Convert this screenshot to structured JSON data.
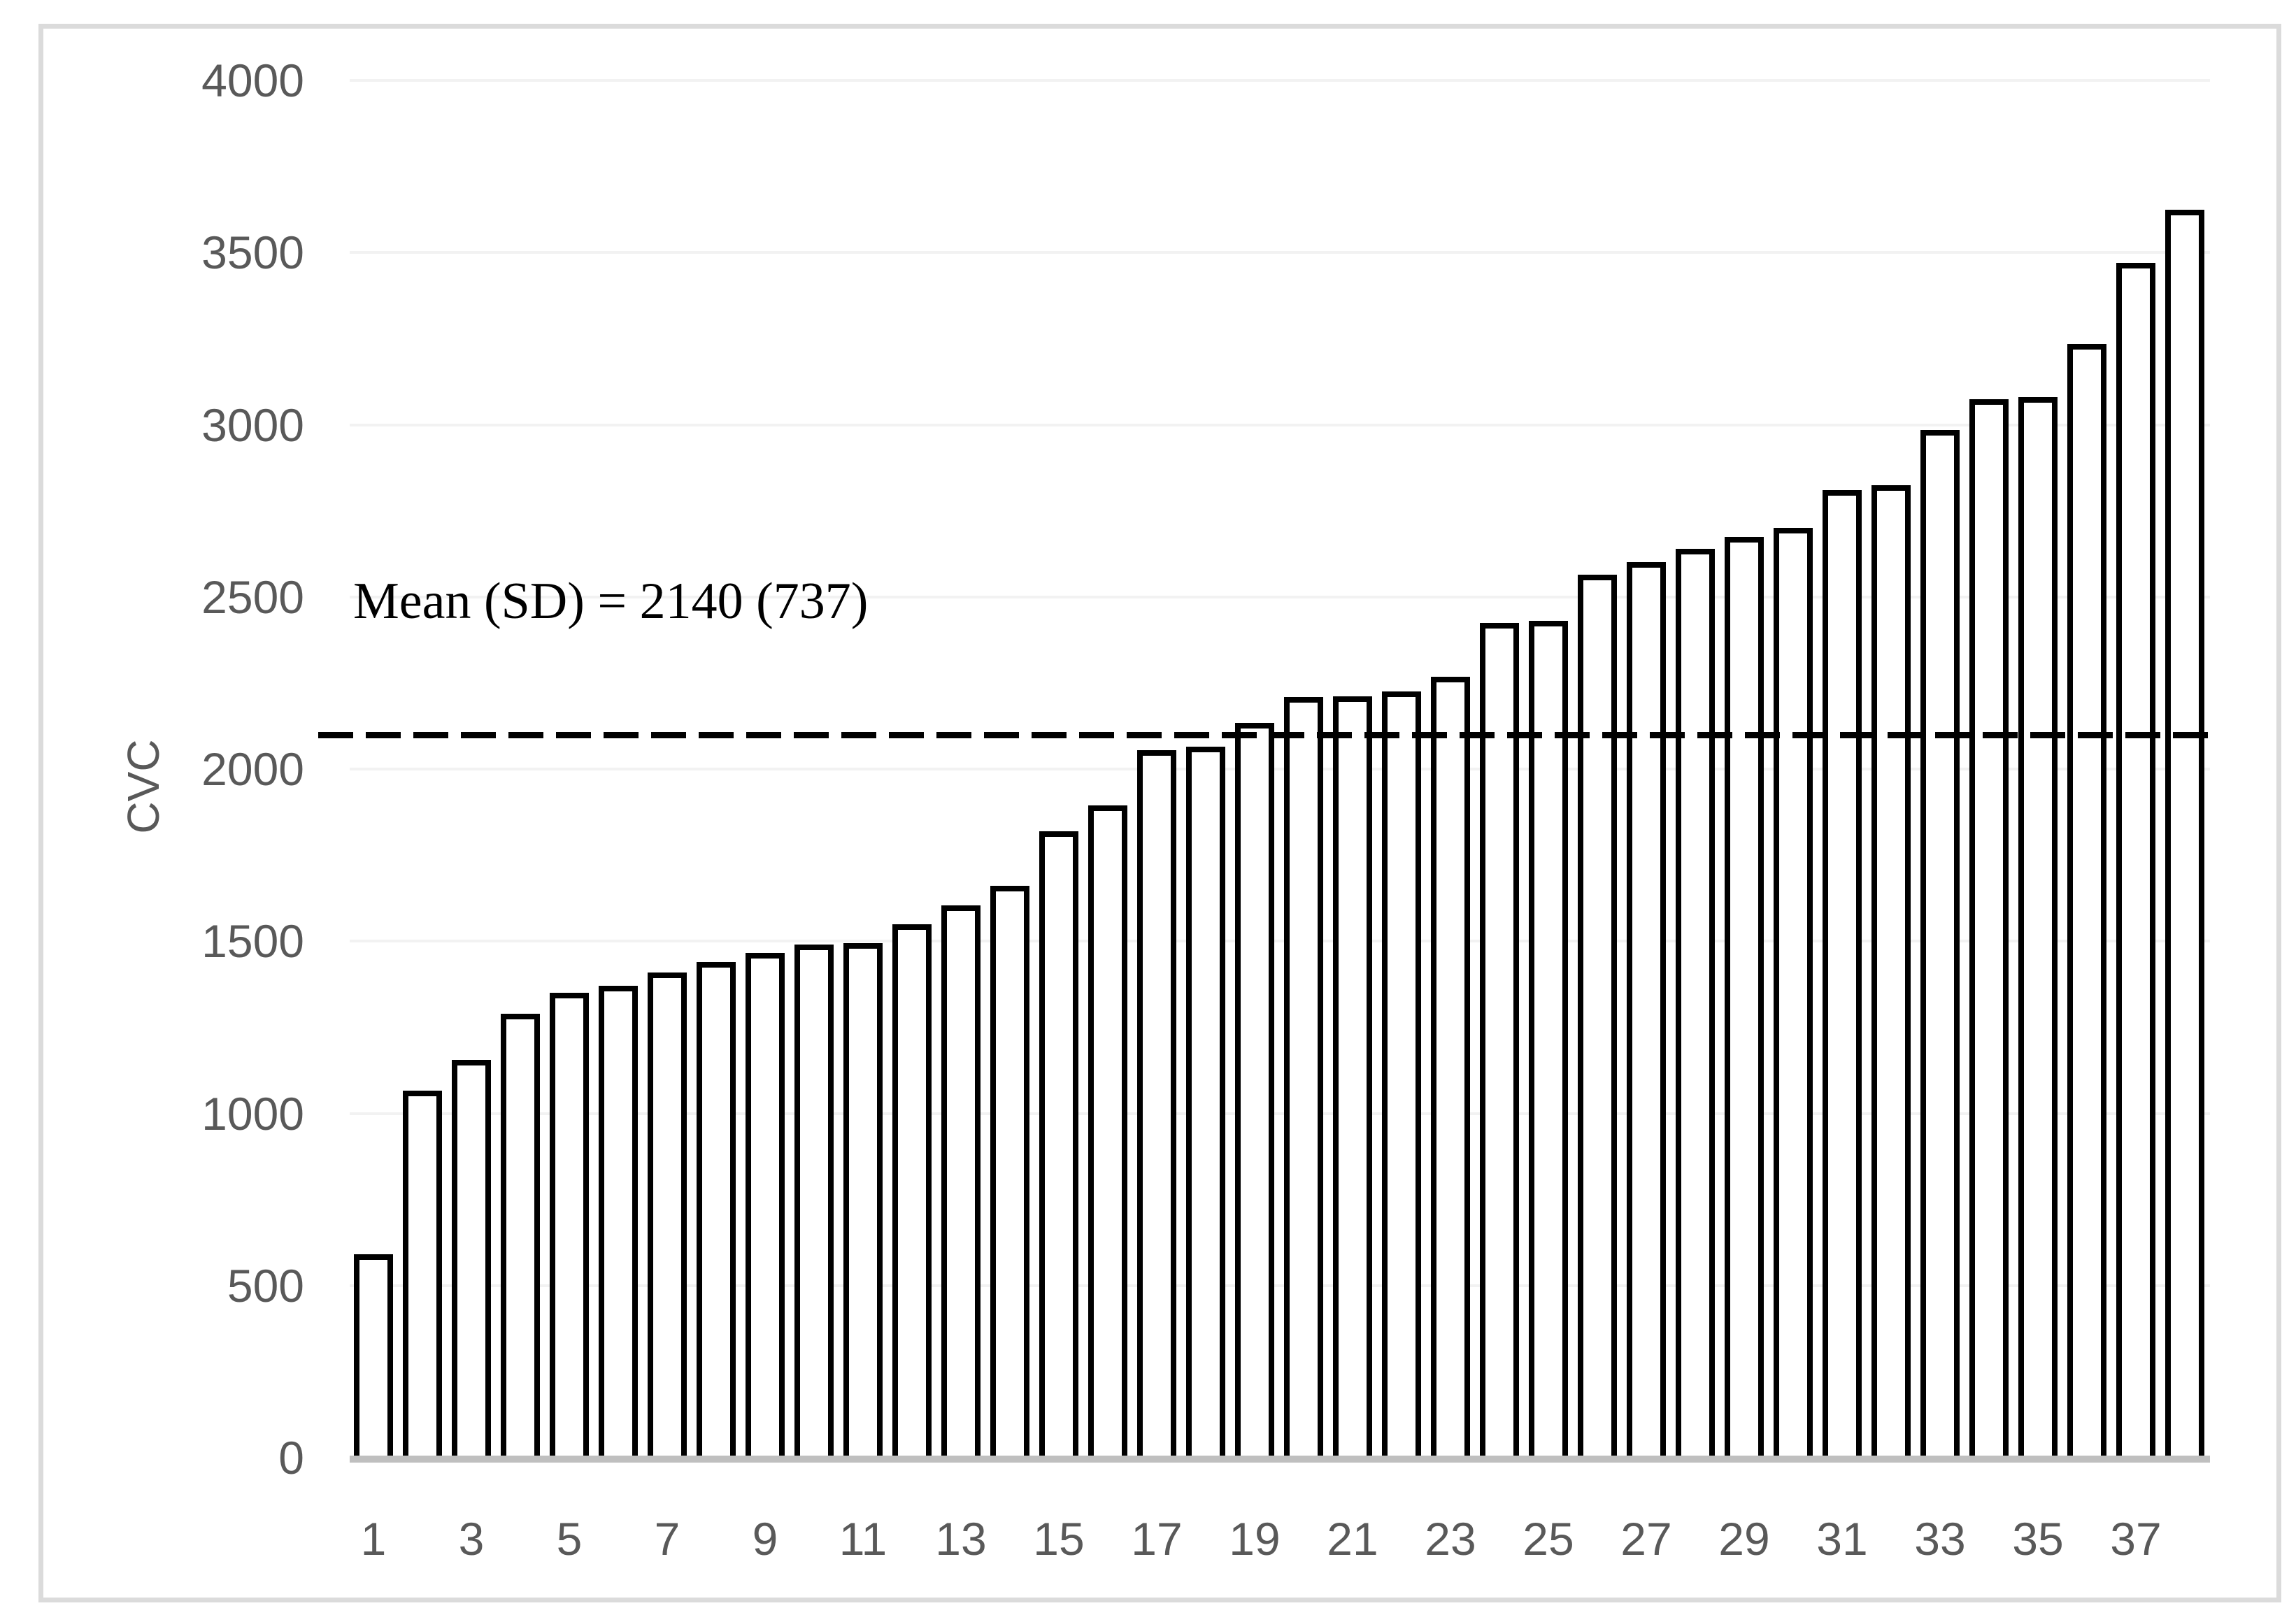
{
  "figure": {
    "y_axis_label": "CVC",
    "annotation": "Mean (SD) = 2140 (737)"
  },
  "chart_data": {
    "type": "bar",
    "title": "",
    "xlabel": "",
    "ylabel": "CVC",
    "categories": [
      1,
      2,
      3,
      4,
      5,
      6,
      7,
      8,
      9,
      10,
      11,
      12,
      13,
      14,
      15,
      16,
      17,
      18,
      19,
      20,
      21,
      22,
      23,
      24,
      25,
      26,
      27,
      28,
      29,
      30,
      31,
      32,
      33,
      34,
      35,
      36,
      37,
      38
    ],
    "values": [
      590,
      1065,
      1155,
      1290,
      1350,
      1370,
      1410,
      1440,
      1465,
      1490,
      1495,
      1550,
      1605,
      1660,
      1820,
      1895,
      2055,
      2065,
      2135,
      2210,
      2212,
      2225,
      2268,
      2425,
      2430,
      2565,
      2600,
      2640,
      2675,
      2700,
      2810,
      2825,
      2985,
      3075,
      3080,
      3235,
      3470,
      3625
    ],
    "x_tick_labels": [
      "1",
      "3",
      "5",
      "7",
      "9",
      "11",
      "13",
      "15",
      "17",
      "19",
      "21",
      "23",
      "25",
      "27",
      "29",
      "31",
      "33",
      "35",
      "37"
    ],
    "y_ticks": [
      0,
      500,
      1000,
      1500,
      2000,
      2500,
      3000,
      3500,
      4000
    ],
    "ylim": [
      0,
      4000
    ],
    "grid": "horizontal",
    "legend": "none",
    "bar_fill": "#ffffff",
    "bar_stroke": "#000000",
    "mean": 2140,
    "sd": 737,
    "mean_line": {
      "style": "dashed",
      "value": 2100
    },
    "annotation_text": "Mean (SD) = 2140 (737)"
  },
  "colors": {
    "tick_label": "#595959",
    "gridline": "#f2f2f2",
    "axis_line": "#bfbfbf",
    "frame_border": "#dbdbdb",
    "mean_line": "#000000",
    "annotation": "#000000"
  }
}
